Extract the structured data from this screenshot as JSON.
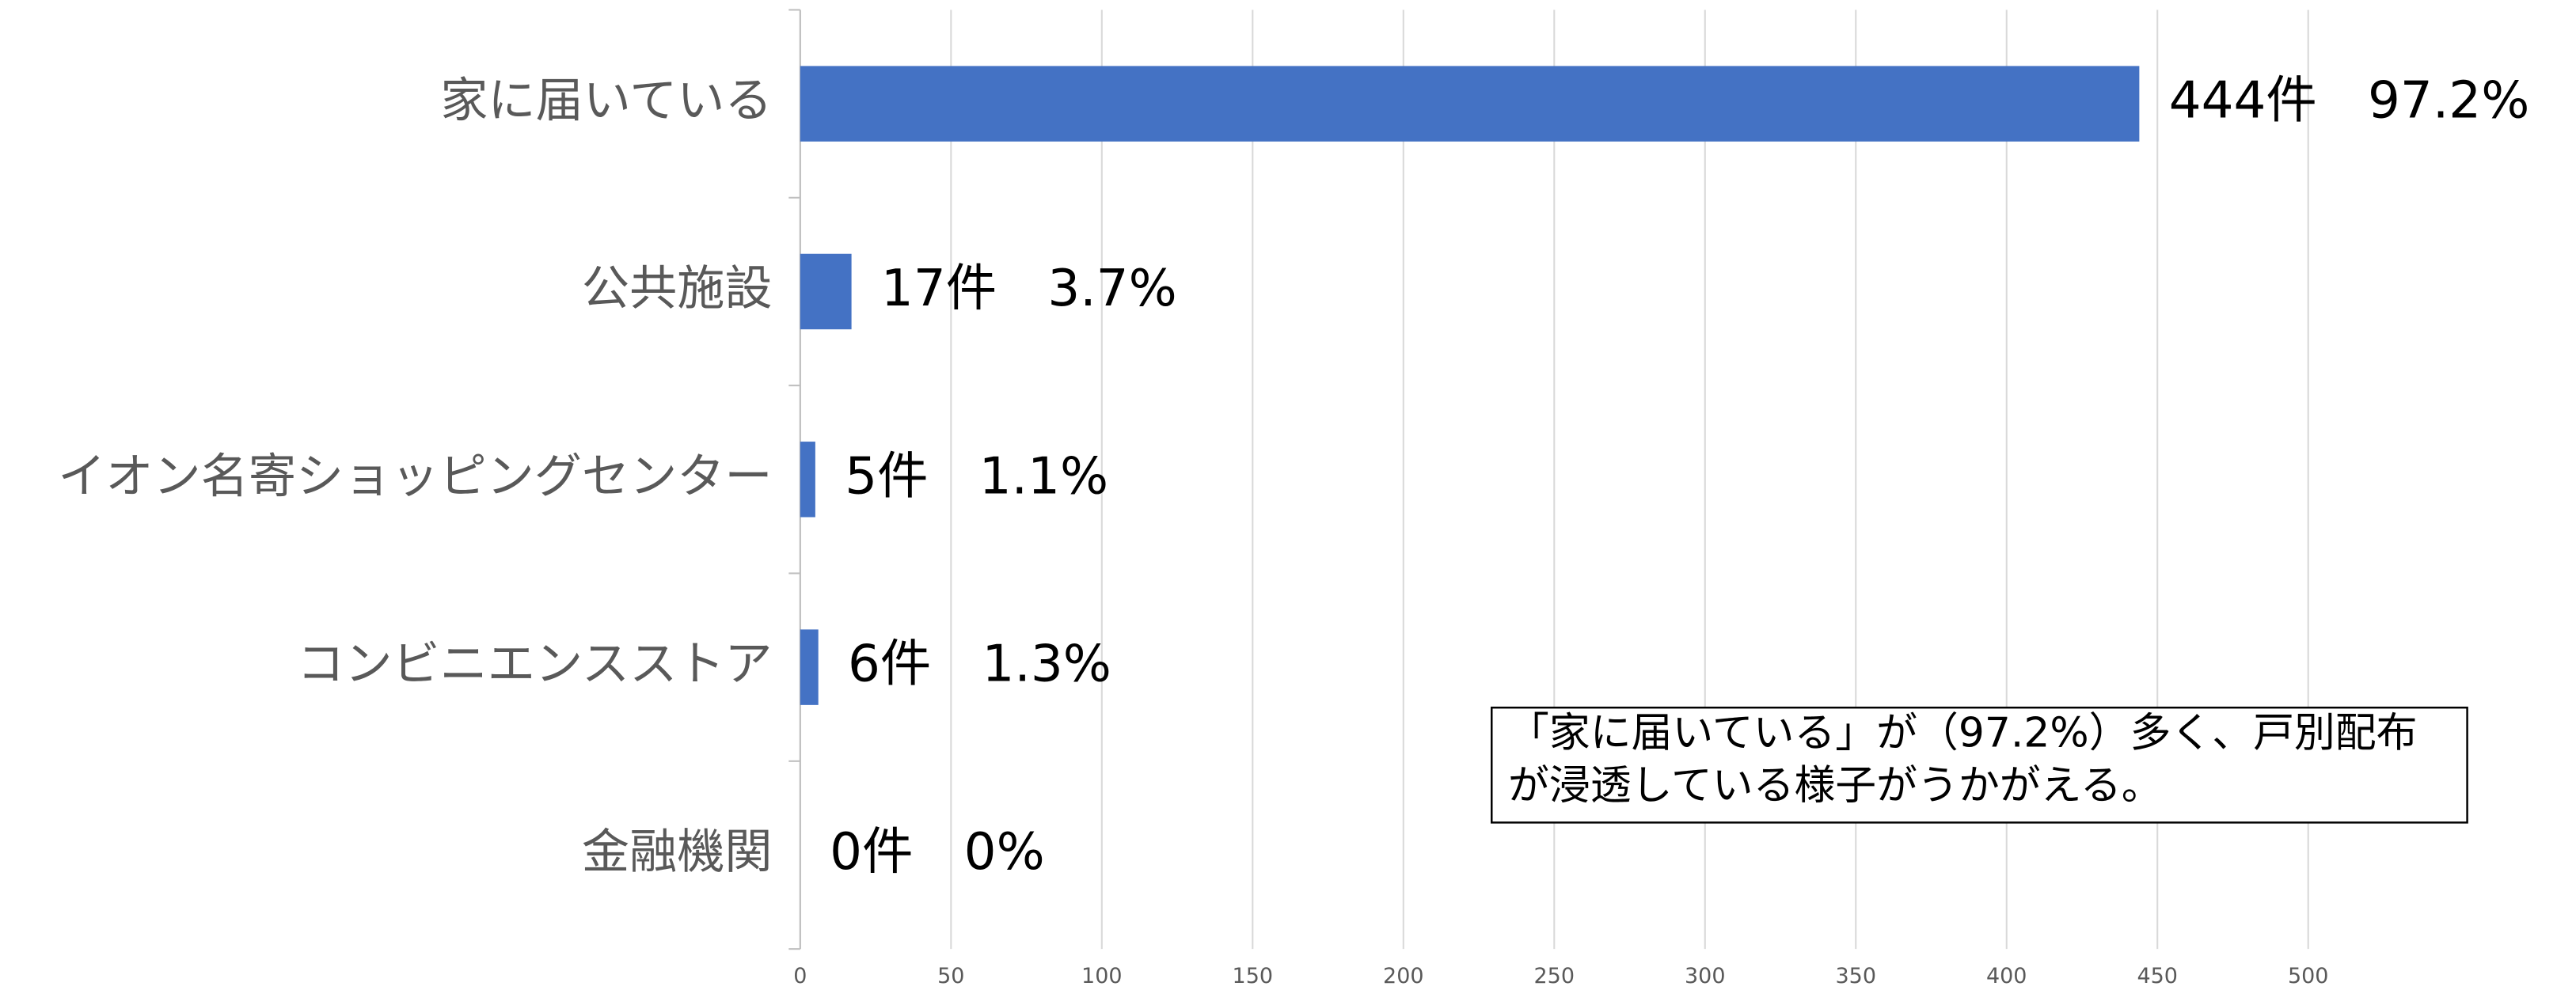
{
  "chart_data": {
    "type": "bar",
    "orientation": "horizontal",
    "categories": [
      "家に届いている",
      "公共施設",
      "イオン名寄ショッピングセンター",
      "コンビニエンスストア",
      "金融機関"
    ],
    "values": [
      444,
      17,
      5,
      6,
      0
    ],
    "value_labels": [
      "444件　97.2%",
      "17件　3.7%",
      "5件　1.1%",
      "6件　1.3%",
      "0件　0%"
    ],
    "color": "#4472c4",
    "xlim": [
      0,
      550
    ],
    "xticks": [
      0,
      50,
      100,
      150,
      200,
      250,
      300,
      350,
      400,
      450,
      500
    ],
    "grid": true,
    "annotation": [
      "「家に届いている」が（97.2%）多く、戸別配布",
      "が浸透している様子がうかがえる。"
    ]
  }
}
